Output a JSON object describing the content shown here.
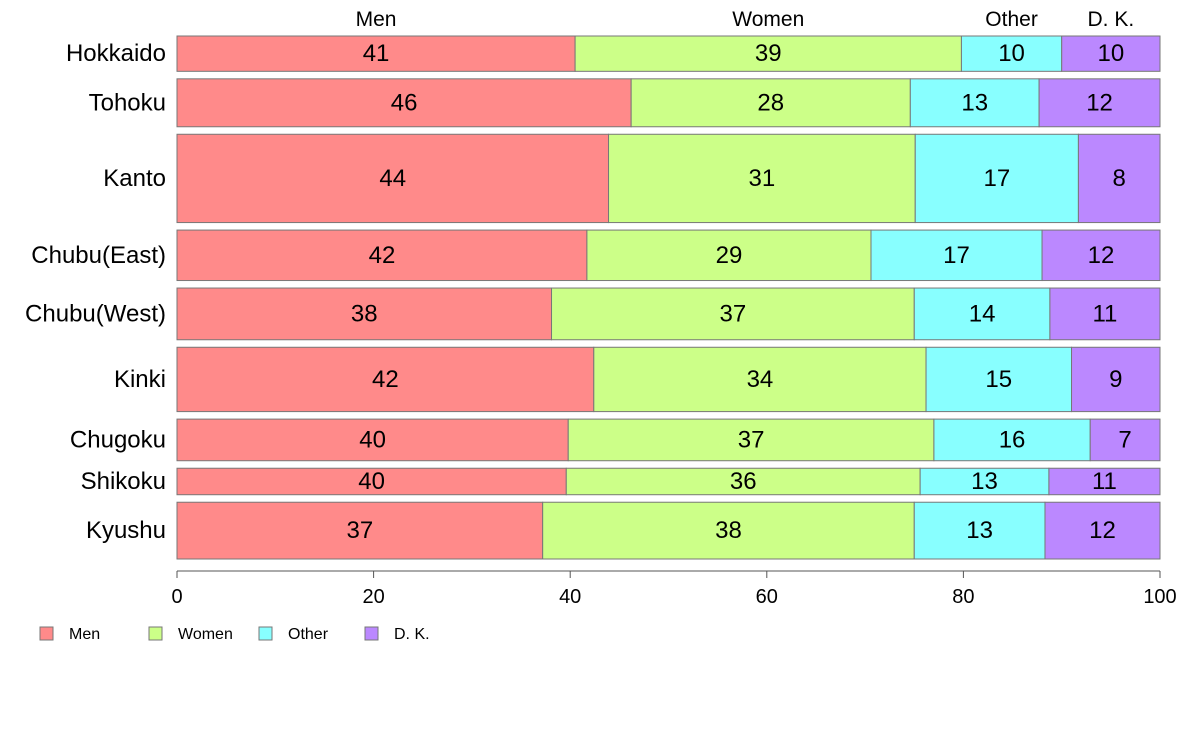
{
  "chart_data": {
    "type": "bar",
    "orientation": "horizontal",
    "stacked": true,
    "categories": [
      "Hokkaido",
      "Tohoku",
      "Kanto",
      "Chubu(East)",
      "Chubu(West)",
      "Kinki",
      "Chugoku",
      "Shikoku",
      "Kyushu"
    ],
    "relative_weights": [
      28,
      38,
      70,
      40,
      41,
      51,
      33,
      21,
      45
    ],
    "series": [
      {
        "name": "Men",
        "color": "#ff8a8a",
        "values": [
          40.5,
          46.2,
          43.9,
          41.7,
          38.1,
          42.4,
          39.8,
          39.6,
          37.2
        ],
        "labels": [
          "41",
          "46",
          "44",
          "42",
          "38",
          "42",
          "40",
          "40",
          "37"
        ]
      },
      {
        "name": "Women",
        "color": "#ccff88",
        "values": [
          39.3,
          28.4,
          31.2,
          28.9,
          36.9,
          33.8,
          37.2,
          36.0,
          37.8
        ],
        "labels": [
          "39",
          "28",
          "31",
          "29",
          "37",
          "34",
          "37",
          "36",
          "38"
        ]
      },
      {
        "name": "Other",
        "color": "#88ffff",
        "values": [
          10.2,
          13.1,
          16.6,
          17.4,
          13.8,
          14.8,
          15.9,
          13.1,
          13.3
        ],
        "labels": [
          "10",
          "13",
          "17",
          "17",
          "14",
          "15",
          "16",
          "13",
          "13"
        ]
      },
      {
        "name": "D. K.",
        "color": "#bb88ff",
        "values": [
          10.0,
          12.3,
          8.3,
          12.0,
          11.2,
          9.0,
          7.1,
          11.3,
          11.7
        ],
        "labels": [
          "10",
          "12",
          "8",
          "12",
          "11",
          "9",
          "7",
          "11",
          "12"
        ]
      }
    ],
    "xlim": [
      0,
      100
    ],
    "xticks": [
      0,
      20,
      40,
      60,
      80,
      100
    ],
    "xtick_labels": [
      "0",
      "20",
      "40",
      "60",
      "80",
      "100"
    ],
    "legend_position": "bottom-left",
    "grid": false
  }
}
